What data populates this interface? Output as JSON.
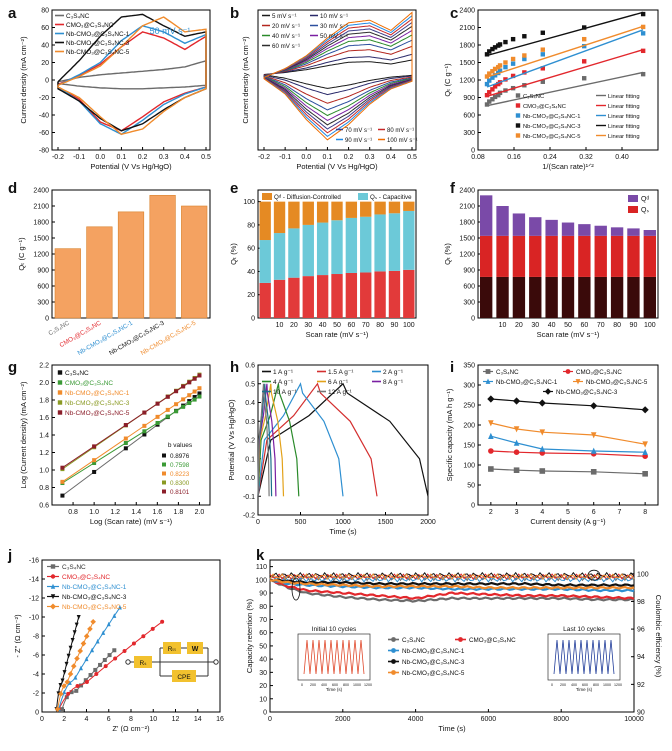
{
  "colors": {
    "CSNC": "#6b6b6b",
    "CMO": "#e2272c",
    "NB1": "#2e8fd1",
    "NB3": "#111111",
    "NB5": "#f08b2c",
    "green": "#3a9a35",
    "olive": "#8a9a23",
    "maroon": "#8b1e2a"
  },
  "chart_data": [
    {
      "id": "a",
      "type": "line",
      "label": "a",
      "title": "",
      "annotation": "50 mV s⁻¹",
      "xlabel": "Potential (V Vs Hg/HgO)",
      "ylabel": "Current density (mA cm⁻²)",
      "xlim": [
        -0.2,
        0.5
      ],
      "ylim": [
        -80,
        80
      ],
      "xticks": [
        "-0.2",
        "-0.1",
        "0.0",
        "0.1",
        "0.2",
        "0.3",
        "0.4",
        "0.5"
      ],
      "yticks": [
        "-80",
        "-60",
        "-40",
        "-20",
        "0",
        "20",
        "40",
        "60",
        "80"
      ],
      "legend": [
        "C₃S₄NC",
        "CMO₃@C₃S₄NC",
        "Nb-CMO₃@C₃S₄NC-1",
        "Nb-CMO₃@C₃S₄NC-3",
        "Nb-CMO₃@C₃S₄NC-5"
      ],
      "series": [
        {
          "name": "C₃S₄NC",
          "x": [
            -0.2,
            -0.1,
            0.0,
            0.1,
            0.2,
            0.3,
            0.4,
            0.5
          ],
          "y_upper": [
            -2,
            3,
            6,
            8,
            10,
            12,
            15,
            22
          ],
          "y_lower": [
            -4,
            -7,
            -9,
            -10,
            -10,
            -9,
            -8,
            -6
          ]
        },
        {
          "name": "CMO₃@C₃S₄NC",
          "x": [
            -0.2,
            -0.1,
            0.0,
            0.1,
            0.2,
            0.3,
            0.4,
            0.5
          ],
          "y_upper": [
            -5,
            5,
            18,
            38,
            55,
            48,
            35,
            50
          ],
          "y_lower": [
            -8,
            -22,
            -48,
            -58,
            -42,
            -25,
            -15,
            -8
          ]
        },
        {
          "name": "Nb-CMO₃@C₃S₄NC-1",
          "x": [
            -0.2,
            -0.1,
            0.0,
            0.1,
            0.2,
            0.3,
            0.4,
            0.5
          ],
          "y_upper": [
            -6,
            6,
            20,
            45,
            62,
            55,
            42,
            52
          ],
          "y_lower": [
            -8,
            -24,
            -50,
            -62,
            -46,
            -28,
            -16,
            -8
          ]
        },
        {
          "name": "Nb-CMO₃@C₃S₄NC-3",
          "x": [
            -0.2,
            -0.1,
            0.0,
            0.1,
            0.2,
            0.3,
            0.4,
            0.5
          ],
          "y_upper": [
            -2,
            22,
            50,
            72,
            75,
            62,
            50,
            55
          ],
          "y_lower": [
            -10,
            -24,
            -44,
            -58,
            -50,
            -34,
            -20,
            -10
          ]
        },
        {
          "name": "Nb-CMO₃@C₃S₄NC-5",
          "x": [
            -0.2,
            -0.1,
            0.0,
            0.1,
            0.2,
            0.3,
            0.4,
            0.5
          ],
          "y_upper": [
            -6,
            4,
            16,
            38,
            62,
            72,
            55,
            58
          ],
          "y_lower": [
            -8,
            -20,
            -42,
            -62,
            -56,
            -36,
            -20,
            -10
          ]
        }
      ]
    },
    {
      "id": "b",
      "type": "line",
      "label": "b",
      "xlabel": "Potential (V Vs Hg/HgO)",
      "ylabel": "Current density (mA cm⁻²)",
      "xlim": [
        -0.2,
        0.5
      ],
      "ylim": [
        -300,
        250
      ],
      "xticks": [
        "-0.2",
        "-0.1",
        "0.0",
        "0.1",
        "0.2",
        "0.3",
        "0.4",
        "0.5"
      ],
      "legend_top": [
        "5 mV s⁻¹",
        "10 mV s⁻¹",
        "20 mV s⁻¹",
        "30 mV s⁻¹",
        "40 mV s⁻¹",
        "50 mV s⁻¹",
        "60 mV s⁻¹"
      ],
      "legend_bottom": [
        "70 mV s⁻¹",
        "80 mV s⁻¹",
        "90 mV s⁻¹",
        "100 mV s⁻¹"
      ],
      "scan_rates": [
        5,
        10,
        20,
        30,
        40,
        50,
        60,
        70,
        80,
        90,
        100
      ],
      "series_colors": [
        "#1a1a1a",
        "#2a2a6a",
        "#b3261e",
        "#2c4f9e",
        "#2a8a2a",
        "#7a1fa2",
        "#2d2d2d",
        "#3d3d8a",
        "#c62828",
        "#1e88e5",
        "#ef6c00"
      ]
    },
    {
      "id": "c",
      "type": "scatter",
      "label": "c",
      "xlabel": "1/(Scan rate)¹ᐟ²",
      "ylabel": "Qₜ (C g⁻¹)",
      "xlim": [
        0.08,
        0.48
      ],
      "ylim": [
        0,
        2400
      ],
      "xticks": [
        "0.08",
        "0.16",
        "0.24",
        "0.32",
        "0.40"
      ],
      "yticks": [
        "0",
        "300",
        "600",
        "900",
        "1200",
        "1500",
        "1800",
        "2100",
        "2400"
      ],
      "x": [
        0.1,
        0.105,
        0.112,
        0.118,
        0.125,
        0.129,
        0.141,
        0.158,
        0.183,
        0.224,
        0.316,
        0.447
      ],
      "series": [
        {
          "name": "C₃S₄NC",
          "y": [
            780,
            830,
            870,
            910,
            940,
            980,
            1020,
            1060,
            1110,
            1170,
            1230,
            1300
          ],
          "fit": [
            760,
            1330
          ]
        },
        {
          "name": "CMO₃@C₃S₄NC",
          "y": [
            940,
            990,
            1040,
            1090,
            1130,
            1160,
            1210,
            1270,
            1330,
            1400,
            1520,
            1700
          ],
          "fit": [
            920,
            1720
          ]
        },
        {
          "name": "Nb-CMO₃@C₃S₄NC-1",
          "y": [
            1130,
            1190,
            1240,
            1280,
            1320,
            1360,
            1420,
            1480,
            1560,
            1640,
            1780,
            2000
          ],
          "fit": [
            1080,
            2060
          ]
        },
        {
          "name": "Nb-CMO₃@C₃S₄NC-3",
          "y": [
            1640,
            1690,
            1730,
            1760,
            1790,
            1810,
            1850,
            1900,
            1950,
            2010,
            2100,
            2330
          ],
          "fit": [
            1620,
            2360
          ]
        },
        {
          "name": "Nb-CMO₃@C₃S₄NC-5",
          "y": [
            1260,
            1310,
            1350,
            1390,
            1420,
            1450,
            1500,
            1560,
            1620,
            1720,
            1900,
            2110
          ],
          "fit": [
            1250,
            2120
          ]
        }
      ],
      "legend": [
        [
          "C₃S₄NC",
          "Linear fitting"
        ],
        [
          "CMO₃@C₃S₄NC",
          "Linear fitting"
        ],
        [
          "Nb-CMO₃@C₃S₄NC-1",
          "Linear fitting"
        ],
        [
          "Nb-CMO₃@C₃S₄NC-3",
          "Linear fitting"
        ],
        [
          "Nb-CMO₃@C₃S₄NC-5",
          "Linear fitting"
        ]
      ]
    },
    {
      "id": "d",
      "type": "bar",
      "label": "d",
      "ylabel": "Qₜ (C g⁻¹)",
      "ylim": [
        0,
        2400
      ],
      "yticks": [
        "0",
        "300",
        "600",
        "900",
        "1200",
        "1500",
        "1800",
        "2100",
        "2400"
      ],
      "categories": [
        "C₃S₄NC",
        "CMO₃@C₃S₄NC",
        "Nb-CMO₃@C₃S₄NC-1",
        "Nb-CMO₃@C₃S₄NC-3",
        "Nb-CMO₃@C₃S₄NC-5"
      ],
      "values": [
        1300,
        1710,
        1990,
        2300,
        2100
      ]
    },
    {
      "id": "e",
      "type": "bar",
      "label": "e",
      "xlabel": "Scan rate (mV s⁻¹)",
      "ylabel": "Qₜ (%)",
      "ylim": [
        0,
        100
      ],
      "yticks": [
        "0",
        "20",
        "40",
        "60",
        "80",
        "100"
      ],
      "legend": [
        "Qᵈ - Diffusion-Controlled",
        "Qₛ - Capacitive"
      ],
      "categories": [
        "5",
        "10",
        "20",
        "30",
        "40",
        "50",
        "60",
        "70",
        "80",
        "90",
        "100"
      ],
      "xticks": [
        "10",
        "20",
        "30",
        "40",
        "50",
        "60",
        "70",
        "80",
        "90",
        "100"
      ],
      "series": [
        {
          "name": "Qₛ - Capacitive",
          "values": [
            67,
            73,
            77,
            80,
            82,
            84,
            86,
            87,
            89,
            90,
            92
          ]
        },
        {
          "name": "Qᵈ - Diffusion-Controlled",
          "values": [
            33,
            27,
            23,
            20,
            18,
            16,
            14,
            13,
            11,
            10,
            8
          ]
        }
      ]
    },
    {
      "id": "f",
      "type": "bar",
      "label": "f",
      "xlabel": "Scan rate (mV s⁻¹)",
      "ylabel": "Qₜ (%)",
      "ylim": [
        0,
        2400
      ],
      "yticks": [
        "0",
        "300",
        "600",
        "900",
        "1200",
        "1500",
        "1800",
        "2100",
        "2400"
      ],
      "legend": [
        "Qᵈ",
        "Qₛ"
      ],
      "categories": [
        "5",
        "10",
        "20",
        "30",
        "40",
        "50",
        "60",
        "70",
        "80",
        "90",
        "100"
      ],
      "xticks": [
        "10",
        "20",
        "30",
        "40",
        "50",
        "60",
        "70",
        "80",
        "90",
        "100"
      ],
      "series": [
        {
          "name": "Qₛ",
          "values": [
            1540,
            1540,
            1540,
            1540,
            1540,
            1540,
            1540,
            1540,
            1540,
            1540,
            1540
          ]
        },
        {
          "name": "Qᵈ",
          "values": [
            760,
            560,
            420,
            350,
            300,
            250,
            220,
            190,
            160,
            140,
            110
          ]
        }
      ]
    },
    {
      "id": "g",
      "type": "scatter",
      "label": "g",
      "xlabel": "Log (Scan rate) (mV s⁻¹)",
      "ylabel": "Log (Current density) (mA cm⁻²)",
      "xlim": [
        0.6,
        2.1
      ],
      "ylim": [
        0.6,
        2.2
      ],
      "xticks": [
        "0.8",
        "1.0",
        "1.2",
        "1.4",
        "1.6",
        "1.8",
        "2.0"
      ],
      "yticks": [
        "0.6",
        "0.8",
        "1.0",
        "1.2",
        "1.4",
        "1.6",
        "1.8",
        "2.0",
        "2.2"
      ],
      "x": [
        0.699,
        1.0,
        1.301,
        1.477,
        1.602,
        1.699,
        1.778,
        1.845,
        1.903,
        1.954,
        2.0
      ],
      "legend": [
        "C₃S₄NC",
        "CMO₃@C₃S₄NC",
        "Nb-CMO₃@C₃S₄NC-1",
        "Nb-CMO₃@C₃S₄NC-3",
        "Nb-CMO₃@C₃S₄NC-5"
      ],
      "b_values_title": "b values",
      "b_values": [
        "0.8976",
        "0.7598",
        "0.8223",
        "0.8300",
        "0.8101"
      ],
      "series": [
        {
          "name": "C₃S₄NC",
          "intercept": 0.08,
          "slope": 0.8976
        },
        {
          "name": "CMO₃@C₃S₄NC",
          "intercept": 0.32,
          "slope": 0.7598
        },
        {
          "name": "Nb-CMO₃@C₃S₄NC-1",
          "intercept": 0.29,
          "slope": 0.8223
        },
        {
          "name": "Nb-CMO₃@C₃S₄NC-3",
          "intercept": 0.43,
          "slope": 0.83
        },
        {
          "name": "Nb-CMO₃@C₃S₄NC-5",
          "intercept": 0.46,
          "slope": 0.8101
        }
      ]
    },
    {
      "id": "h",
      "type": "line",
      "label": "h",
      "xlabel": "Time (s)",
      "ylabel": "Potential (V Vs Hg/HgO)",
      "xlim": [
        0,
        2000
      ],
      "ylim": [
        -0.2,
        0.6
      ],
      "xticks": [
        "0",
        "500",
        "1000",
        "1500",
        "2000"
      ],
      "yticks": [
        "-0.2",
        "-0.1",
        "0.0",
        "0.1",
        "0.2",
        "0.3",
        "0.4",
        "0.5",
        "0.6"
      ],
      "legend": [
        "1 A g⁻¹",
        "1.5 A g⁻¹",
        "2 A g⁻¹",
        "4 A g⁻¹",
        "6 A g⁻¹",
        "8 A g⁻¹",
        "10 A g⁻¹",
        "12 A g⁻¹"
      ],
      "current_densities": [
        1,
        1.5,
        2,
        4,
        6,
        8,
        10,
        12
      ],
      "discharge_end_times": [
        2000,
        1400,
        1000,
        480,
        300,
        210,
        160,
        130
      ]
    },
    {
      "id": "i",
      "type": "line",
      "label": "i",
      "xlabel": "Current density (A g⁻¹)",
      "ylabel": "Specific capacity (mA h g⁻¹)",
      "xlim": [
        1.5,
        8.5
      ],
      "ylim": [
        0,
        350
      ],
      "xticks": [
        "2",
        "3",
        "4",
        "5",
        "6",
        "7",
        "8"
      ],
      "yticks": [
        "0",
        "50",
        "100",
        "150",
        "200",
        "250",
        "300",
        "350"
      ],
      "x": [
        2,
        3,
        4,
        6,
        8
      ],
      "legend": [
        "C₃S₄NC",
        "CMO₃@C₃S₄NC",
        "Nb-CMO₃@C₃S₄NC-1",
        "Nb-CMO₃@C₃S₄NC-5",
        "Nb-CMO₃@C₃S₄NC-3"
      ],
      "series": [
        {
          "name": "C₃S₄NC",
          "y": [
            90,
            87,
            85,
            83,
            78
          ]
        },
        {
          "name": "CMO₃@C₃S₄NC",
          "y": [
            135,
            132,
            130,
            128,
            122
          ]
        },
        {
          "name": "Nb-CMO₃@C₃S₄NC-1",
          "y": [
            172,
            155,
            140,
            135,
            132
          ]
        },
        {
          "name": "Nb-CMO₃@C₃S₄NC-5",
          "y": [
            205,
            190,
            182,
            175,
            152
          ]
        },
        {
          "name": "Nb-CMO₃@C₃S₄NC-3",
          "y": [
            265,
            260,
            255,
            248,
            238
          ]
        }
      ]
    },
    {
      "id": "j",
      "type": "scatter",
      "label": "j",
      "xlabel": "Z' (Ω cm⁻²)",
      "ylabel": "- Z'' (Ω cm⁻²)",
      "xlim": [
        0,
        16
      ],
      "ylim": [
        0,
        -16
      ],
      "xticks": [
        "0",
        "2",
        "4",
        "6",
        "8",
        "10",
        "12",
        "14",
        "16"
      ],
      "yticks": [
        "0",
        "-2",
        "-4",
        "-6",
        "-8",
        "-10",
        "-12",
        "-14",
        "-16"
      ],
      "legend": [
        "C₃S₄NC",
        "CMO₃@C₃S₄NC",
        "Nb-CMO₃@C₃S₄NC-1",
        "Nb-CMO₃@C₃S₄NC-3",
        "Nb-CMO₃@C₃S₄NC-5"
      ],
      "circuit_labels": [
        "Rₛ",
        "Rₜₜ",
        "W",
        "CPE"
      ],
      "series": [
        {
          "name": "C₃S₄NC",
          "x_start": 1.8,
          "x_end": 6.5,
          "y_end": -6.5
        },
        {
          "name": "CMO₃@C₃S₄NC",
          "x_start": 1.5,
          "x_end": 10.8,
          "y_end": -9.5
        },
        {
          "name": "Nb-CMO₃@C₃S₄NC-1",
          "x_start": 1.5,
          "x_end": 7.0,
          "y_end": -11.0
        },
        {
          "name": "Nb-CMO₃@C₃S₄NC-3",
          "x_start": 1.3,
          "x_end": 3.3,
          "y_end": -10.0
        },
        {
          "name": "Nb-CMO₃@C₃S₄NC-5",
          "x_start": 1.4,
          "x_end": 4.6,
          "y_end": -9.5
        }
      ]
    },
    {
      "id": "k",
      "type": "line",
      "label": "k",
      "xlabel": "Time (s)",
      "ylabel": "Capacity retention (%)",
      "y2label": "Coulombic efficiency (%)",
      "xlim": [
        0,
        10000
      ],
      "ylim": [
        0,
        115
      ],
      "y2lim": [
        90,
        101
      ],
      "xticks": [
        "0",
        "2000",
        "4000",
        "6000",
        "8000",
        "10000"
      ],
      "yticks": [
        "0",
        "10",
        "20",
        "30",
        "40",
        "50",
        "60",
        "70",
        "80",
        "90",
        "100",
        "110"
      ],
      "y2ticks": [
        "90",
        "92",
        "94",
        "96",
        "98",
        "100"
      ],
      "legend": [
        "C₃S₄NC",
        "CMO₃@C₃S₄NC",
        "Nb-CMO₃@C₃S₄NC-1",
        "Nb-CMO₃@C₃S₄NC-3",
        "Nb-CMO₃@C₃S₄NC-5"
      ],
      "inset_left_title": "Initial 10 cycles",
      "inset_right_title": "Last 10 cycles",
      "inset_xlabel": "Time (s)",
      "inset_xticks": [
        "0",
        "200",
        "400",
        "600",
        "800",
        "1000",
        "1200"
      ],
      "x": [
        0,
        500,
        1000,
        2000,
        3000,
        4000,
        5000,
        6000,
        7000,
        8000,
        9000,
        10000
      ],
      "series": [
        {
          "name": "C₃S₄NC",
          "retention": [
            100,
            94,
            90,
            87,
            85,
            84,
            86,
            86,
            86,
            86,
            85,
            85
          ],
          "ce": 99.7
        },
        {
          "name": "CMO₃@C₃S₄NC",
          "retention": [
            100,
            95,
            92,
            90,
            88,
            86,
            90,
            89,
            88,
            88,
            87,
            86
          ],
          "ce": 99.8
        },
        {
          "name": "Nb-CMO₃@C₃S₄NC-1",
          "retention": [
            100,
            97,
            96,
            95,
            94,
            94,
            93,
            93,
            93,
            93,
            92,
            92
          ],
          "ce": 99.6
        },
        {
          "name": "Nb-CMO₃@C₃S₄NC-3",
          "retention": [
            100,
            99,
            98,
            98,
            97,
            97,
            97,
            97,
            97,
            96,
            96,
            96
          ],
          "ce": 99.9
        },
        {
          "name": "Nb-CMO₃@C₃S₄NC-5",
          "retention": [
            100,
            98,
            97,
            96,
            95,
            95,
            95,
            94,
            94,
            94,
            94,
            94
          ],
          "ce": 99.8
        }
      ]
    }
  ]
}
